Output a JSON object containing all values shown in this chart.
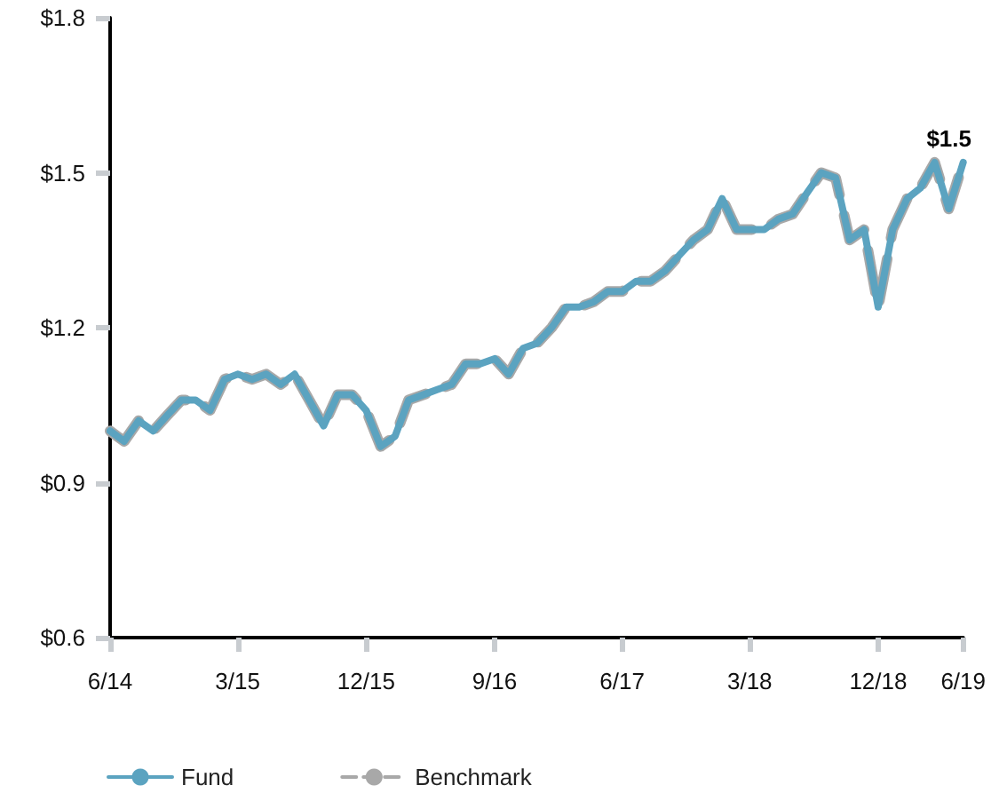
{
  "chart_data": {
    "type": "line",
    "x": [
      "2014-06",
      "2014-07",
      "2014-08",
      "2014-09",
      "2014-10",
      "2014-11",
      "2014-12",
      "2015-01",
      "2015-02",
      "2015-03",
      "2015-04",
      "2015-05",
      "2015-06",
      "2015-07",
      "2015-08",
      "2015-09",
      "2015-10",
      "2015-11",
      "2015-12",
      "2016-01",
      "2016-02",
      "2016-03",
      "2016-04",
      "2016-05",
      "2016-06",
      "2016-07",
      "2016-08",
      "2016-09",
      "2016-10",
      "2016-11",
      "2016-12",
      "2017-01",
      "2017-02",
      "2017-03",
      "2017-04",
      "2017-05",
      "2017-06",
      "2017-07",
      "2017-08",
      "2017-09",
      "2017-10",
      "2017-11",
      "2017-12",
      "2018-01",
      "2018-02",
      "2018-03",
      "2018-04",
      "2018-05",
      "2018-06",
      "2018-07",
      "2018-08",
      "2018-09",
      "2018-10",
      "2018-11",
      "2018-12",
      "2019-01",
      "2019-02",
      "2019-03",
      "2019-04",
      "2019-05",
      "2019-06"
    ],
    "series": [
      {
        "name": "Benchmark",
        "color": "#a8a8a8",
        "line_style": "dashed",
        "values": [
          1.0,
          0.98,
          1.02,
          1.0,
          1.03,
          1.06,
          1.06,
          1.04,
          1.1,
          1.11,
          1.1,
          1.11,
          1.09,
          1.11,
          1.06,
          1.01,
          1.07,
          1.07,
          1.04,
          0.97,
          0.99,
          1.06,
          1.07,
          1.08,
          1.09,
          1.13,
          1.13,
          1.14,
          1.11,
          1.16,
          1.17,
          1.2,
          1.24,
          1.24,
          1.25,
          1.27,
          1.27,
          1.29,
          1.29,
          1.31,
          1.34,
          1.37,
          1.39,
          1.45,
          1.39,
          1.39,
          1.39,
          1.41,
          1.42,
          1.46,
          1.5,
          1.49,
          1.37,
          1.39,
          1.24,
          1.39,
          1.45,
          1.47,
          1.52,
          1.43,
          1.52
        ]
      },
      {
        "name": "Fund",
        "color": "#5ba3c0",
        "line_style": "solid",
        "values": [
          1.0,
          0.98,
          1.02,
          1.0,
          1.03,
          1.06,
          1.06,
          1.04,
          1.1,
          1.11,
          1.1,
          1.11,
          1.09,
          1.11,
          1.06,
          1.01,
          1.07,
          1.07,
          1.04,
          0.97,
          0.99,
          1.06,
          1.07,
          1.08,
          1.09,
          1.13,
          1.13,
          1.14,
          1.11,
          1.16,
          1.17,
          1.2,
          1.24,
          1.24,
          1.25,
          1.27,
          1.27,
          1.29,
          1.29,
          1.31,
          1.34,
          1.37,
          1.39,
          1.45,
          1.39,
          1.39,
          1.39,
          1.41,
          1.42,
          1.46,
          1.5,
          1.49,
          1.37,
          1.39,
          1.24,
          1.39,
          1.45,
          1.47,
          1.52,
          1.43,
          1.52
        ]
      }
    ],
    "xlim": [
      "2014-06",
      "2019-06"
    ],
    "xticks": [
      {
        "value": "2014-06",
        "label": "6/14"
      },
      {
        "value": "2015-03",
        "label": "3/15"
      },
      {
        "value": "2015-12",
        "label": "12/15"
      },
      {
        "value": "2016-09",
        "label": "9/16"
      },
      {
        "value": "2017-06",
        "label": "6/17"
      },
      {
        "value": "2018-03",
        "label": "3/18"
      },
      {
        "value": "2018-12",
        "label": "12/18"
      },
      {
        "value": "2019-06",
        "label": "6/19"
      }
    ],
    "ylim": [
      0.6,
      1.8
    ],
    "yticks": [
      {
        "value": 0.6,
        "label": "$0.6"
      },
      {
        "value": 0.9,
        "label": "$0.9"
      },
      {
        "value": 1.2,
        "label": "$1.2"
      },
      {
        "value": 1.5,
        "label": "$1.5"
      },
      {
        "value": 1.8,
        "label": "$1.8"
      }
    ],
    "annotations": [
      {
        "text": "$1.5",
        "x": "2019-06",
        "y": 1.52
      }
    ],
    "grid": false,
    "legend": "bottom left",
    "marker": "none"
  }
}
